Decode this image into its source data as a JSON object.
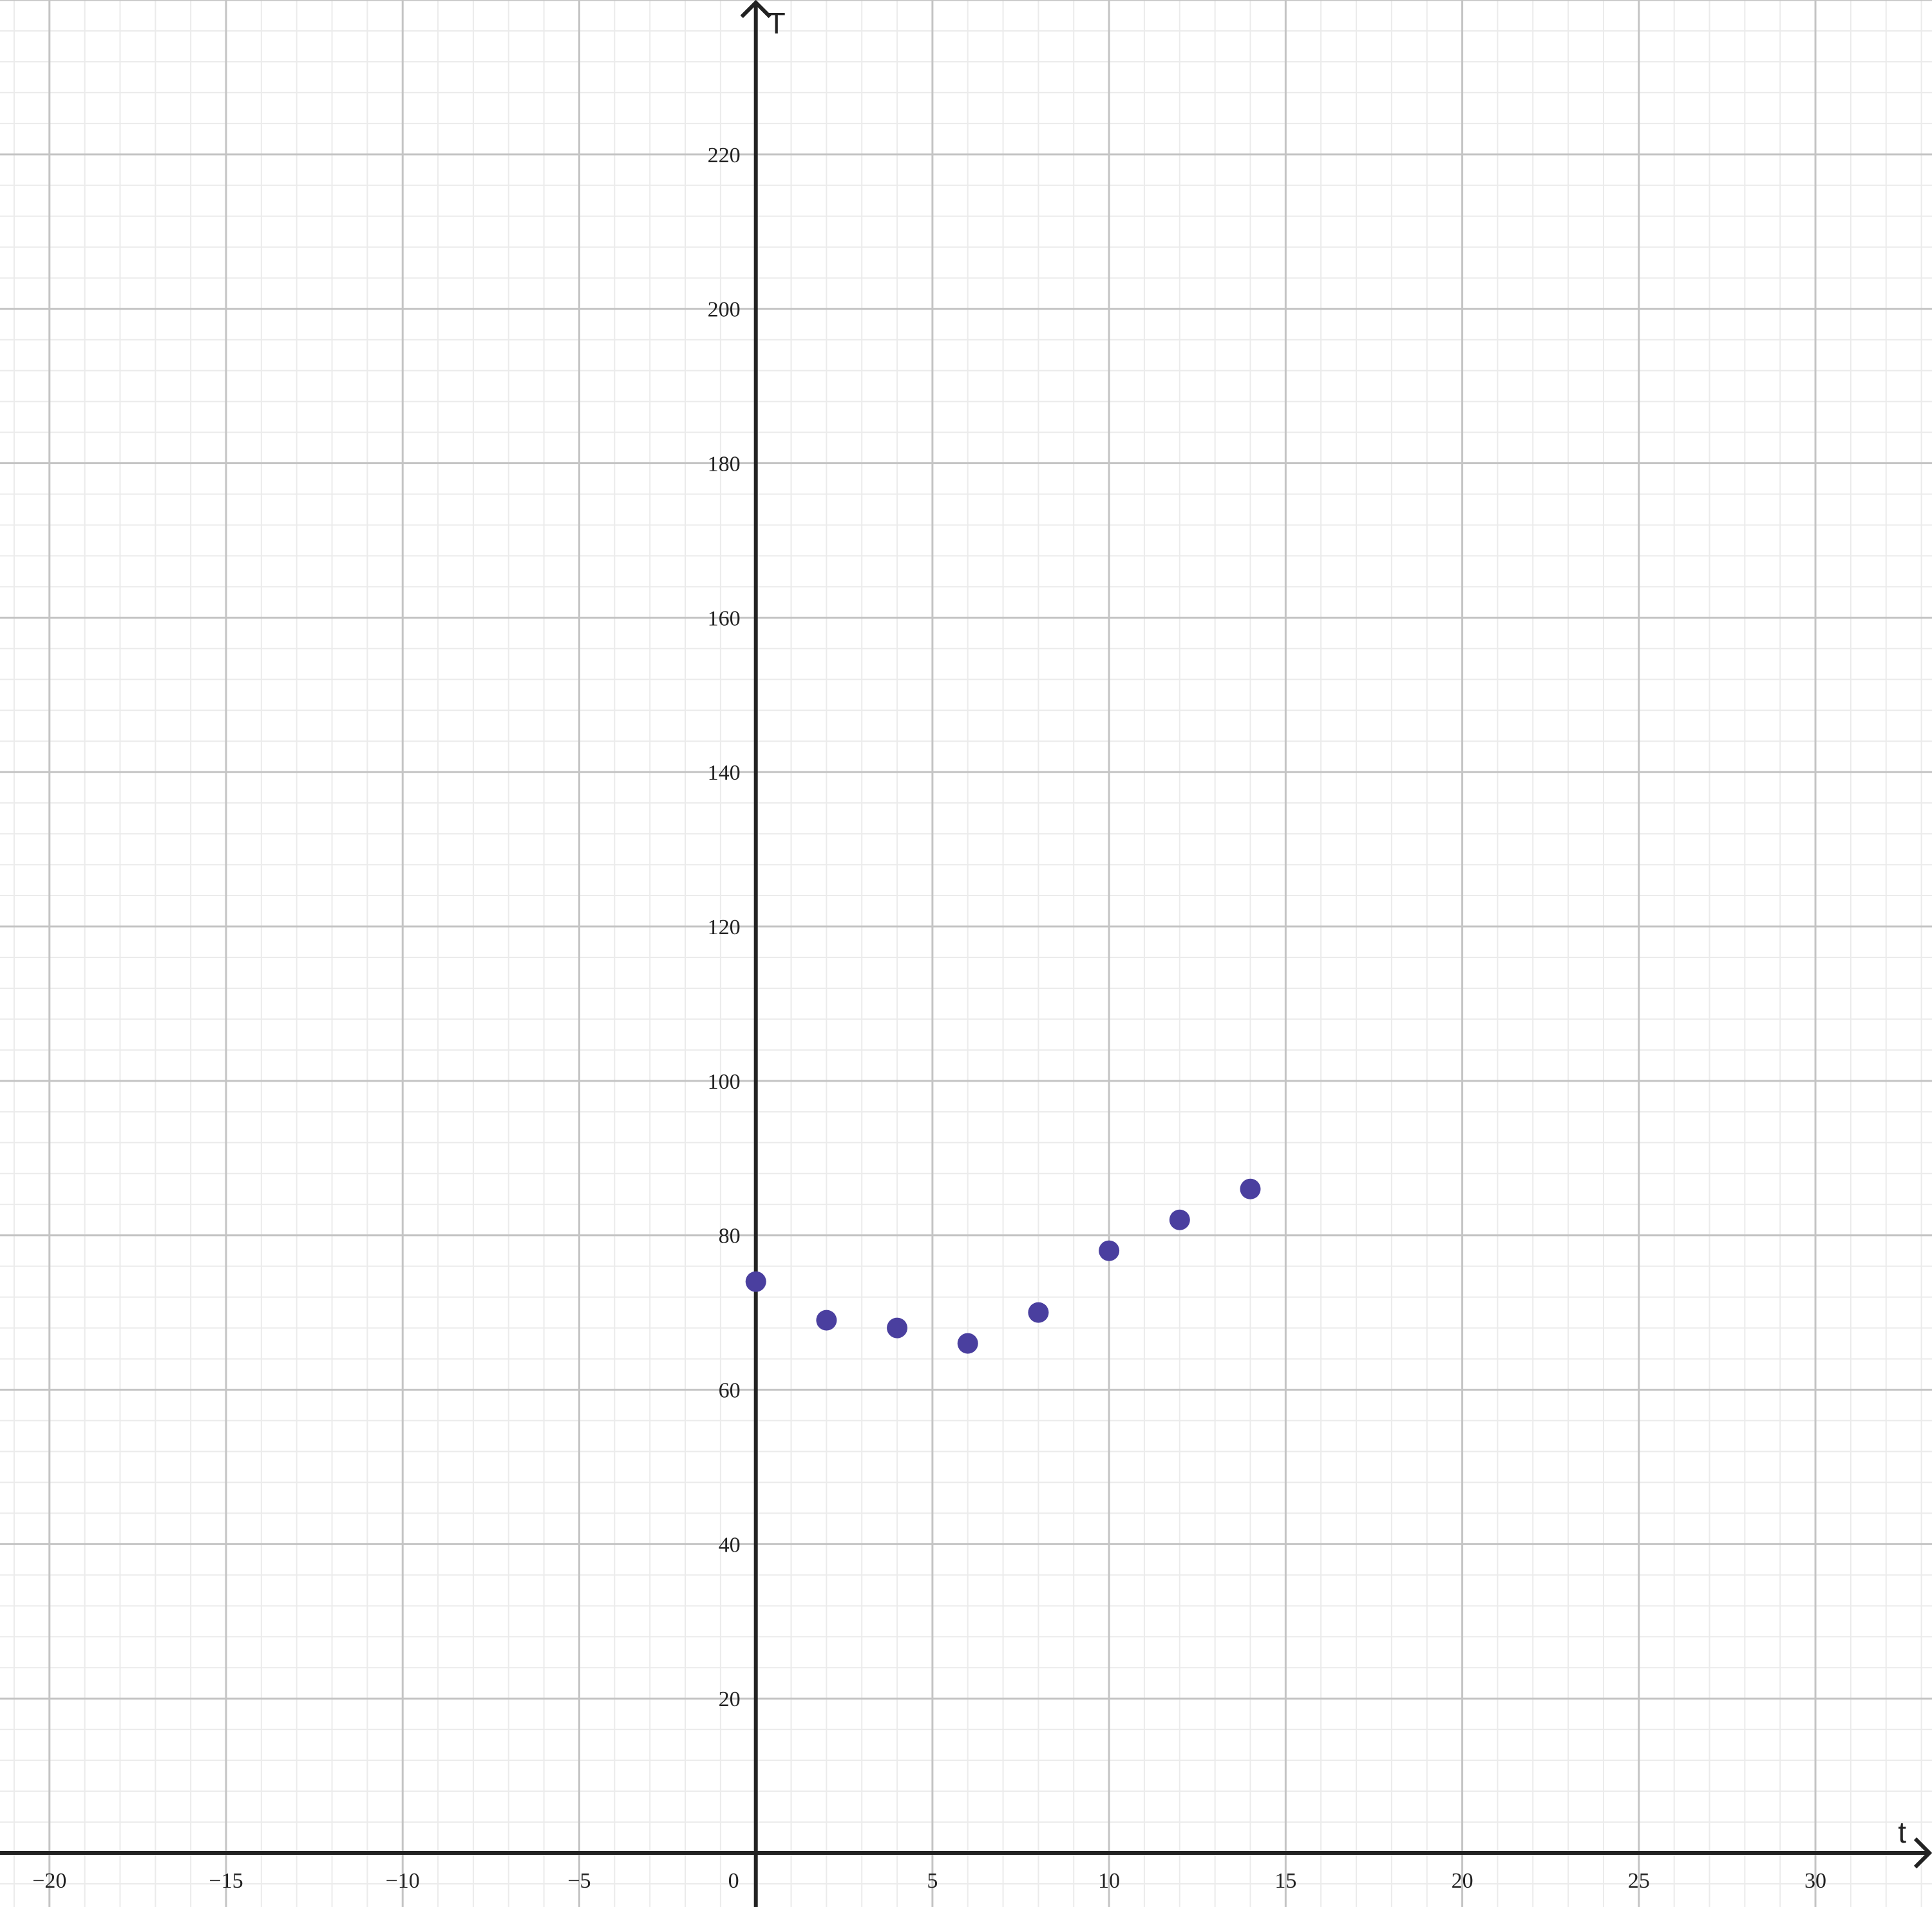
{
  "chart_data": {
    "type": "scatter",
    "title": "",
    "xlabel": "t",
    "ylabel": "T",
    "xlim": [
      -21.4,
      33.3
    ],
    "ylim": [
      -7,
      240
    ],
    "grid": true,
    "x_major_step": 5,
    "x_minor_step": 1,
    "y_major_step": 20,
    "y_minor_step": 4,
    "x_ticks": [
      -20,
      -15,
      -10,
      -5,
      0,
      5,
      10,
      15,
      20,
      25,
      30
    ],
    "x_tick_labels": [
      "−20",
      "−15",
      "−10",
      "−5",
      "0",
      "5",
      "10",
      "15",
      "20",
      "25",
      "30"
    ],
    "y_ticks": [
      20,
      40,
      60,
      80,
      100,
      120,
      140,
      160,
      180,
      200,
      220
    ],
    "y_tick_labels": [
      "20",
      "40",
      "60",
      "80",
      "100",
      "120",
      "140",
      "160",
      "180",
      "200",
      "220"
    ],
    "series": [
      {
        "color": "#4a3f9f",
        "points": [
          {
            "x": 0,
            "y": 74
          },
          {
            "x": 2,
            "y": 69
          },
          {
            "x": 4,
            "y": 68
          },
          {
            "x": 6,
            "y": 66
          },
          {
            "x": 8,
            "y": 70
          },
          {
            "x": 10,
            "y": 78
          },
          {
            "x": 12,
            "y": 82
          },
          {
            "x": 14,
            "y": 86
          }
        ]
      }
    ]
  },
  "colors": {
    "grid_major": "#c4c4c4",
    "grid_minor": "#ebebeb",
    "axis": "#222222",
    "points": "#4a3f9f"
  }
}
